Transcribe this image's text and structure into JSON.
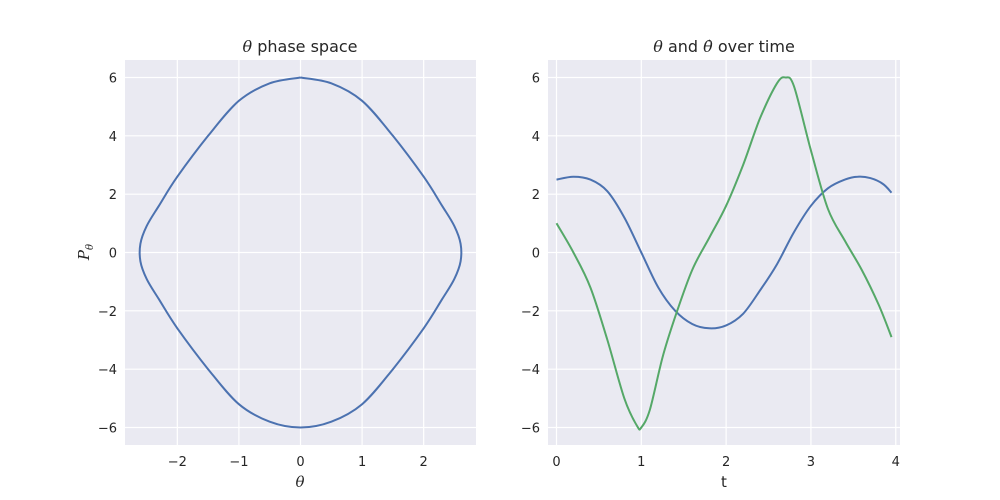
{
  "chart_data": [
    {
      "type": "line",
      "title_symbol": "θ",
      "title_text": " phase space",
      "xlabel": "θ",
      "ylabel_main": "P",
      "ylabel_sub": "θ",
      "xlim": [
        -2.85,
        2.85
      ],
      "ylim": [
        -6.6,
        6.6
      ],
      "xticks": [
        -2,
        -1,
        0,
        1,
        2
      ],
      "xtick_labels": [
        "−2",
        "−1",
        "0",
        "1",
        "2"
      ],
      "yticks": [
        -6,
        -4,
        -2,
        0,
        2,
        4,
        6
      ],
      "ytick_labels": [
        "−6",
        "−4",
        "−2",
        "0",
        "2",
        "4",
        "6"
      ],
      "grid": true,
      "series": [
        {
          "color": "#4c72b0",
          "points": [
            [
              0.0,
              6.0
            ],
            [
              0.5,
              5.8
            ],
            [
              1.0,
              5.2
            ],
            [
              1.5,
              4.0
            ],
            [
              2.0,
              2.6
            ],
            [
              2.3,
              1.6
            ],
            [
              2.5,
              0.9
            ],
            [
              2.6,
              0.3
            ],
            [
              2.6,
              -0.3
            ],
            [
              2.5,
              -0.9
            ],
            [
              2.3,
              -1.6
            ],
            [
              2.0,
              -2.6
            ],
            [
              1.5,
              -4.0
            ],
            [
              1.0,
              -5.2
            ],
            [
              0.5,
              -5.8
            ],
            [
              0.0,
              -6.0
            ],
            [
              -0.5,
              -5.8
            ],
            [
              -1.0,
              -5.2
            ],
            [
              -1.5,
              -4.0
            ],
            [
              -2.0,
              -2.6
            ],
            [
              -2.3,
              -1.6
            ],
            [
              -2.5,
              -0.9
            ],
            [
              -2.6,
              -0.3
            ],
            [
              -2.6,
              0.3
            ],
            [
              -2.5,
              0.9
            ],
            [
              -2.3,
              1.6
            ],
            [
              -2.0,
              2.6
            ],
            [
              -1.5,
              4.0
            ],
            [
              -1.0,
              5.2
            ],
            [
              -0.5,
              5.8
            ],
            [
              0.0,
              6.0
            ]
          ]
        }
      ]
    },
    {
      "type": "line",
      "title_part1": "θ",
      "title_part2": " and ",
      "title_part3": "θ̇",
      "title_part4": " over time",
      "xlabel": "t",
      "ylabel": "",
      "xlim": [
        -0.1,
        4.05
      ],
      "ylim": [
        -6.6,
        6.6
      ],
      "xticks": [
        0,
        1,
        2,
        3,
        4
      ],
      "xtick_labels": [
        "0",
        "1",
        "2",
        "3",
        "4"
      ],
      "yticks": [
        -6,
        -4,
        -2,
        0,
        2,
        4,
        6
      ],
      "ytick_labels": [
        "−6",
        "−4",
        "−2",
        "0",
        "2",
        "4",
        "6"
      ],
      "grid": true,
      "series": [
        {
          "color": "#4c72b0",
          "points": [
            [
              0.0,
              2.5
            ],
            [
              0.2,
              2.6
            ],
            [
              0.4,
              2.5
            ],
            [
              0.6,
              2.1
            ],
            [
              0.8,
              1.2
            ],
            [
              1.0,
              0.0
            ],
            [
              1.2,
              -1.2
            ],
            [
              1.4,
              -2.0
            ],
            [
              1.6,
              -2.45
            ],
            [
              1.8,
              -2.6
            ],
            [
              2.0,
              -2.5
            ],
            [
              2.2,
              -2.1
            ],
            [
              2.4,
              -1.3
            ],
            [
              2.6,
              -0.4
            ],
            [
              2.8,
              0.7
            ],
            [
              3.0,
              1.6
            ],
            [
              3.2,
              2.2
            ],
            [
              3.4,
              2.5
            ],
            [
              3.55,
              2.6
            ],
            [
              3.7,
              2.55
            ],
            [
              3.85,
              2.35
            ],
            [
              3.95,
              2.05
            ]
          ]
        },
        {
          "color": "#55a868",
          "points": [
            [
              0.0,
              1.0
            ],
            [
              0.2,
              0.0
            ],
            [
              0.4,
              -1.2
            ],
            [
              0.6,
              -3.0
            ],
            [
              0.8,
              -5.0
            ],
            [
              0.95,
              -5.95
            ],
            [
              1.0,
              -6.0
            ],
            [
              1.1,
              -5.4
            ],
            [
              1.25,
              -3.6
            ],
            [
              1.4,
              -2.2
            ],
            [
              1.6,
              -0.6
            ],
            [
              1.8,
              0.5
            ],
            [
              2.0,
              1.6
            ],
            [
              2.2,
              3.0
            ],
            [
              2.4,
              4.6
            ],
            [
              2.6,
              5.8
            ],
            [
              2.7,
              6.0
            ],
            [
              2.8,
              5.7
            ],
            [
              3.0,
              3.5
            ],
            [
              3.2,
              1.5
            ],
            [
              3.4,
              0.4
            ],
            [
              3.6,
              -0.6
            ],
            [
              3.8,
              -1.8
            ],
            [
              3.95,
              -2.9
            ]
          ]
        }
      ]
    }
  ]
}
